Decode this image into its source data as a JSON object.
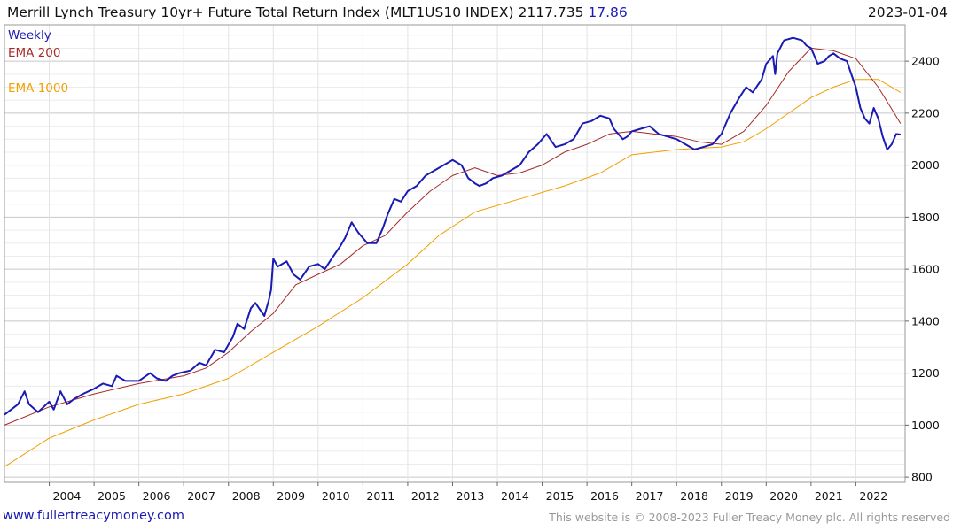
{
  "header": {
    "title": "Merrill Lynch Treasury 10yr+ Future Total Return Index (MLT1US10 INDEX)",
    "price": "2117.735",
    "change": "17.86",
    "date": "2023-01-04"
  },
  "footer": {
    "site": "www.fullertreacymoney.com",
    "copyright": "This website is © 2008-2023 Fuller Treacy Money plc. All rights reserved"
  },
  "colors": {
    "price": "#1a1ab4",
    "ema200": "#a52a2a",
    "ema1000": "#f0a000",
    "grid": "#d9d9d9"
  },
  "chart_data": {
    "type": "line",
    "title": "Merrill Lynch Treasury 10yr+ Future Total Return Index (MLT1US10 INDEX)",
    "frequency": "Weekly",
    "xlabel": "",
    "ylabel": "",
    "xlim": [
      2003.0,
      2023.1
    ],
    "ylim": [
      780,
      2540
    ],
    "y_ticks": [
      800,
      1000,
      1200,
      1400,
      1600,
      1800,
      2000,
      2200,
      2400
    ],
    "x_ticks": [
      2004,
      2005,
      2006,
      2007,
      2008,
      2009,
      2010,
      2011,
      2012,
      2013,
      2014,
      2015,
      2016,
      2017,
      2018,
      2019,
      2020,
      2021,
      2022
    ],
    "legend": [
      "Weekly",
      "EMA 200",
      "EMA 1000"
    ],
    "legend_position": "top-left",
    "grid": true,
    "series": [
      {
        "name": "Weekly",
        "x": [
          2003.0,
          2003.3,
          2003.45,
          2003.55,
          2003.75,
          2004.0,
          2004.1,
          2004.25,
          2004.4,
          2004.55,
          2004.75,
          2005.0,
          2005.2,
          2005.4,
          2005.5,
          2005.7,
          2006.0,
          2006.25,
          2006.4,
          2006.6,
          2006.75,
          2006.9,
          2007.15,
          2007.35,
          2007.5,
          2007.7,
          2007.9,
          2008.1,
          2008.2,
          2008.35,
          2008.5,
          2008.6,
          2008.8,
          2008.9,
          2008.95,
          2009.0,
          2009.1,
          2009.3,
          2009.45,
          2009.6,
          2009.8,
          2010.0,
          2010.15,
          2010.3,
          2010.5,
          2010.6,
          2010.75,
          2010.9,
          2011.1,
          2011.3,
          2011.45,
          2011.55,
          2011.7,
          2011.85,
          2012.0,
          2012.2,
          2012.4,
          2012.6,
          2012.8,
          2013.0,
          2013.2,
          2013.35,
          2013.5,
          2013.6,
          2013.75,
          2013.9,
          2014.1,
          2014.3,
          2014.5,
          2014.7,
          2014.9,
          2015.1,
          2015.3,
          2015.5,
          2015.7,
          2015.9,
          2016.1,
          2016.3,
          2016.5,
          2016.6,
          2016.8,
          2016.9,
          2017.0,
          2017.2,
          2017.4,
          2017.6,
          2017.8,
          2018.0,
          2018.2,
          2018.4,
          2018.6,
          2018.8,
          2018.9,
          2019.0,
          2019.2,
          2019.4,
          2019.55,
          2019.7,
          2019.9,
          2020.0,
          2020.15,
          2020.2,
          2020.25,
          2020.4,
          2020.6,
          2020.8,
          2020.9,
          2021.0,
          2021.15,
          2021.3,
          2021.4,
          2021.5,
          2021.65,
          2021.8,
          2021.9,
          2022.0,
          2022.1,
          2022.2,
          2022.3,
          2022.4,
          2022.5,
          2022.6,
          2022.7,
          2022.8,
          2022.9,
          2023.0
        ],
        "values": [
          1040,
          1080,
          1130,
          1080,
          1050,
          1090,
          1060,
          1130,
          1080,
          1100,
          1120,
          1140,
          1160,
          1150,
          1190,
          1170,
          1170,
          1200,
          1180,
          1170,
          1190,
          1200,
          1210,
          1240,
          1230,
          1290,
          1280,
          1340,
          1390,
          1370,
          1450,
          1470,
          1420,
          1480,
          1520,
          1640,
          1610,
          1630,
          1580,
          1560,
          1610,
          1620,
          1600,
          1640,
          1690,
          1720,
          1780,
          1740,
          1700,
          1700,
          1760,
          1810,
          1870,
          1860,
          1900,
          1920,
          1960,
          1980,
          2000,
          2020,
          2000,
          1950,
          1930,
          1920,
          1930,
          1950,
          1960,
          1980,
          2000,
          2050,
          2080,
          2120,
          2070,
          2080,
          2100,
          2160,
          2170,
          2190,
          2180,
          2140,
          2100,
          2110,
          2130,
          2140,
          2150,
          2120,
          2110,
          2100,
          2080,
          2060,
          2070,
          2080,
          2100,
          2120,
          2200,
          2260,
          2300,
          2280,
          2330,
          2390,
          2420,
          2350,
          2430,
          2480,
          2490,
          2480,
          2460,
          2450,
          2390,
          2400,
          2420,
          2430,
          2410,
          2400,
          2350,
          2300,
          2220,
          2180,
          2160,
          2220,
          2180,
          2110,
          2060,
          2080,
          2120,
          2118
        ]
      },
      {
        "name": "EMA 200",
        "x": [
          2003.0,
          2004.0,
          2005.0,
          2006.0,
          2007.0,
          2007.5,
          2008.0,
          2008.5,
          2009.0,
          2009.5,
          2010.0,
          2010.5,
          2011.0,
          2011.5,
          2012.0,
          2012.5,
          2013.0,
          2013.5,
          2014.0,
          2014.5,
          2015.0,
          2015.5,
          2016.0,
          2016.5,
          2017.0,
          2017.5,
          2018.0,
          2018.5,
          2019.0,
          2019.5,
          2020.0,
          2020.5,
          2021.0,
          2021.5,
          2022.0,
          2022.5,
          2023.0
        ],
        "values": [
          1000,
          1070,
          1120,
          1160,
          1190,
          1220,
          1280,
          1360,
          1430,
          1540,
          1580,
          1620,
          1690,
          1730,
          1820,
          1900,
          1960,
          1990,
          1960,
          1970,
          2000,
          2050,
          2080,
          2120,
          2130,
          2120,
          2110,
          2090,
          2080,
          2130,
          2230,
          2360,
          2450,
          2440,
          2410,
          2300,
          2160
        ]
      },
      {
        "name": "EMA 1000",
        "x": [
          2003.0,
          2004.0,
          2005.0,
          2006.0,
          2007.0,
          2008.0,
          2009.0,
          2010.0,
          2011.0,
          2012.0,
          2012.7,
          2013.5,
          2014.5,
          2015.5,
          2016.3,
          2017.0,
          2018.0,
          2019.0,
          2019.5,
          2020.0,
          2020.5,
          2021.0,
          2021.5,
          2022.0,
          2022.5,
          2023.0
        ],
        "values": [
          840,
          950,
          1020,
          1080,
          1120,
          1180,
          1280,
          1380,
          1490,
          1620,
          1730,
          1820,
          1870,
          1920,
          1970,
          2040,
          2060,
          2070,
          2090,
          2140,
          2200,
          2260,
          2300,
          2330,
          2330,
          2280
        ]
      }
    ]
  }
}
